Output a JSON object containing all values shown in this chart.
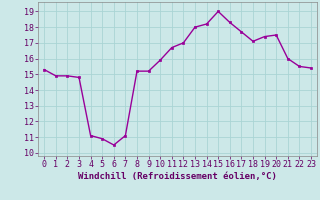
{
  "x": [
    0,
    1,
    2,
    3,
    4,
    5,
    6,
    7,
    8,
    9,
    10,
    11,
    12,
    13,
    14,
    15,
    16,
    17,
    18,
    19,
    20,
    21,
    22,
    23
  ],
  "y": [
    15.3,
    14.9,
    14.9,
    14.8,
    11.1,
    10.9,
    10.5,
    11.1,
    15.2,
    15.2,
    15.9,
    16.7,
    17.0,
    18.0,
    18.2,
    19.0,
    18.3,
    17.7,
    17.1,
    17.4,
    17.5,
    16.0,
    15.5,
    15.4
  ],
  "line_color": "#990099",
  "marker_color": "#990099",
  "bg_color": "#cce8e8",
  "grid_color": "#aad4d4",
  "xlabel": "Windchill (Refroidissement éolien,°C)",
  "ylabel_ticks": [
    10,
    11,
    12,
    13,
    14,
    15,
    16,
    17,
    18,
    19
  ],
  "xtick_labels": [
    "0",
    "1",
    "2",
    "3",
    "4",
    "5",
    "6",
    "7",
    "8",
    "9",
    "10",
    "11",
    "12",
    "13",
    "14",
    "15",
    "16",
    "17",
    "18",
    "19",
    "20",
    "21",
    "22",
    "23"
  ],
  "ylim": [
    9.8,
    19.6
  ],
  "xlim": [
    -0.5,
    23.5
  ],
  "xlabel_fontsize": 6.5,
  "tick_fontsize": 6.0,
  "linewidth": 1.0,
  "markersize": 2.0
}
